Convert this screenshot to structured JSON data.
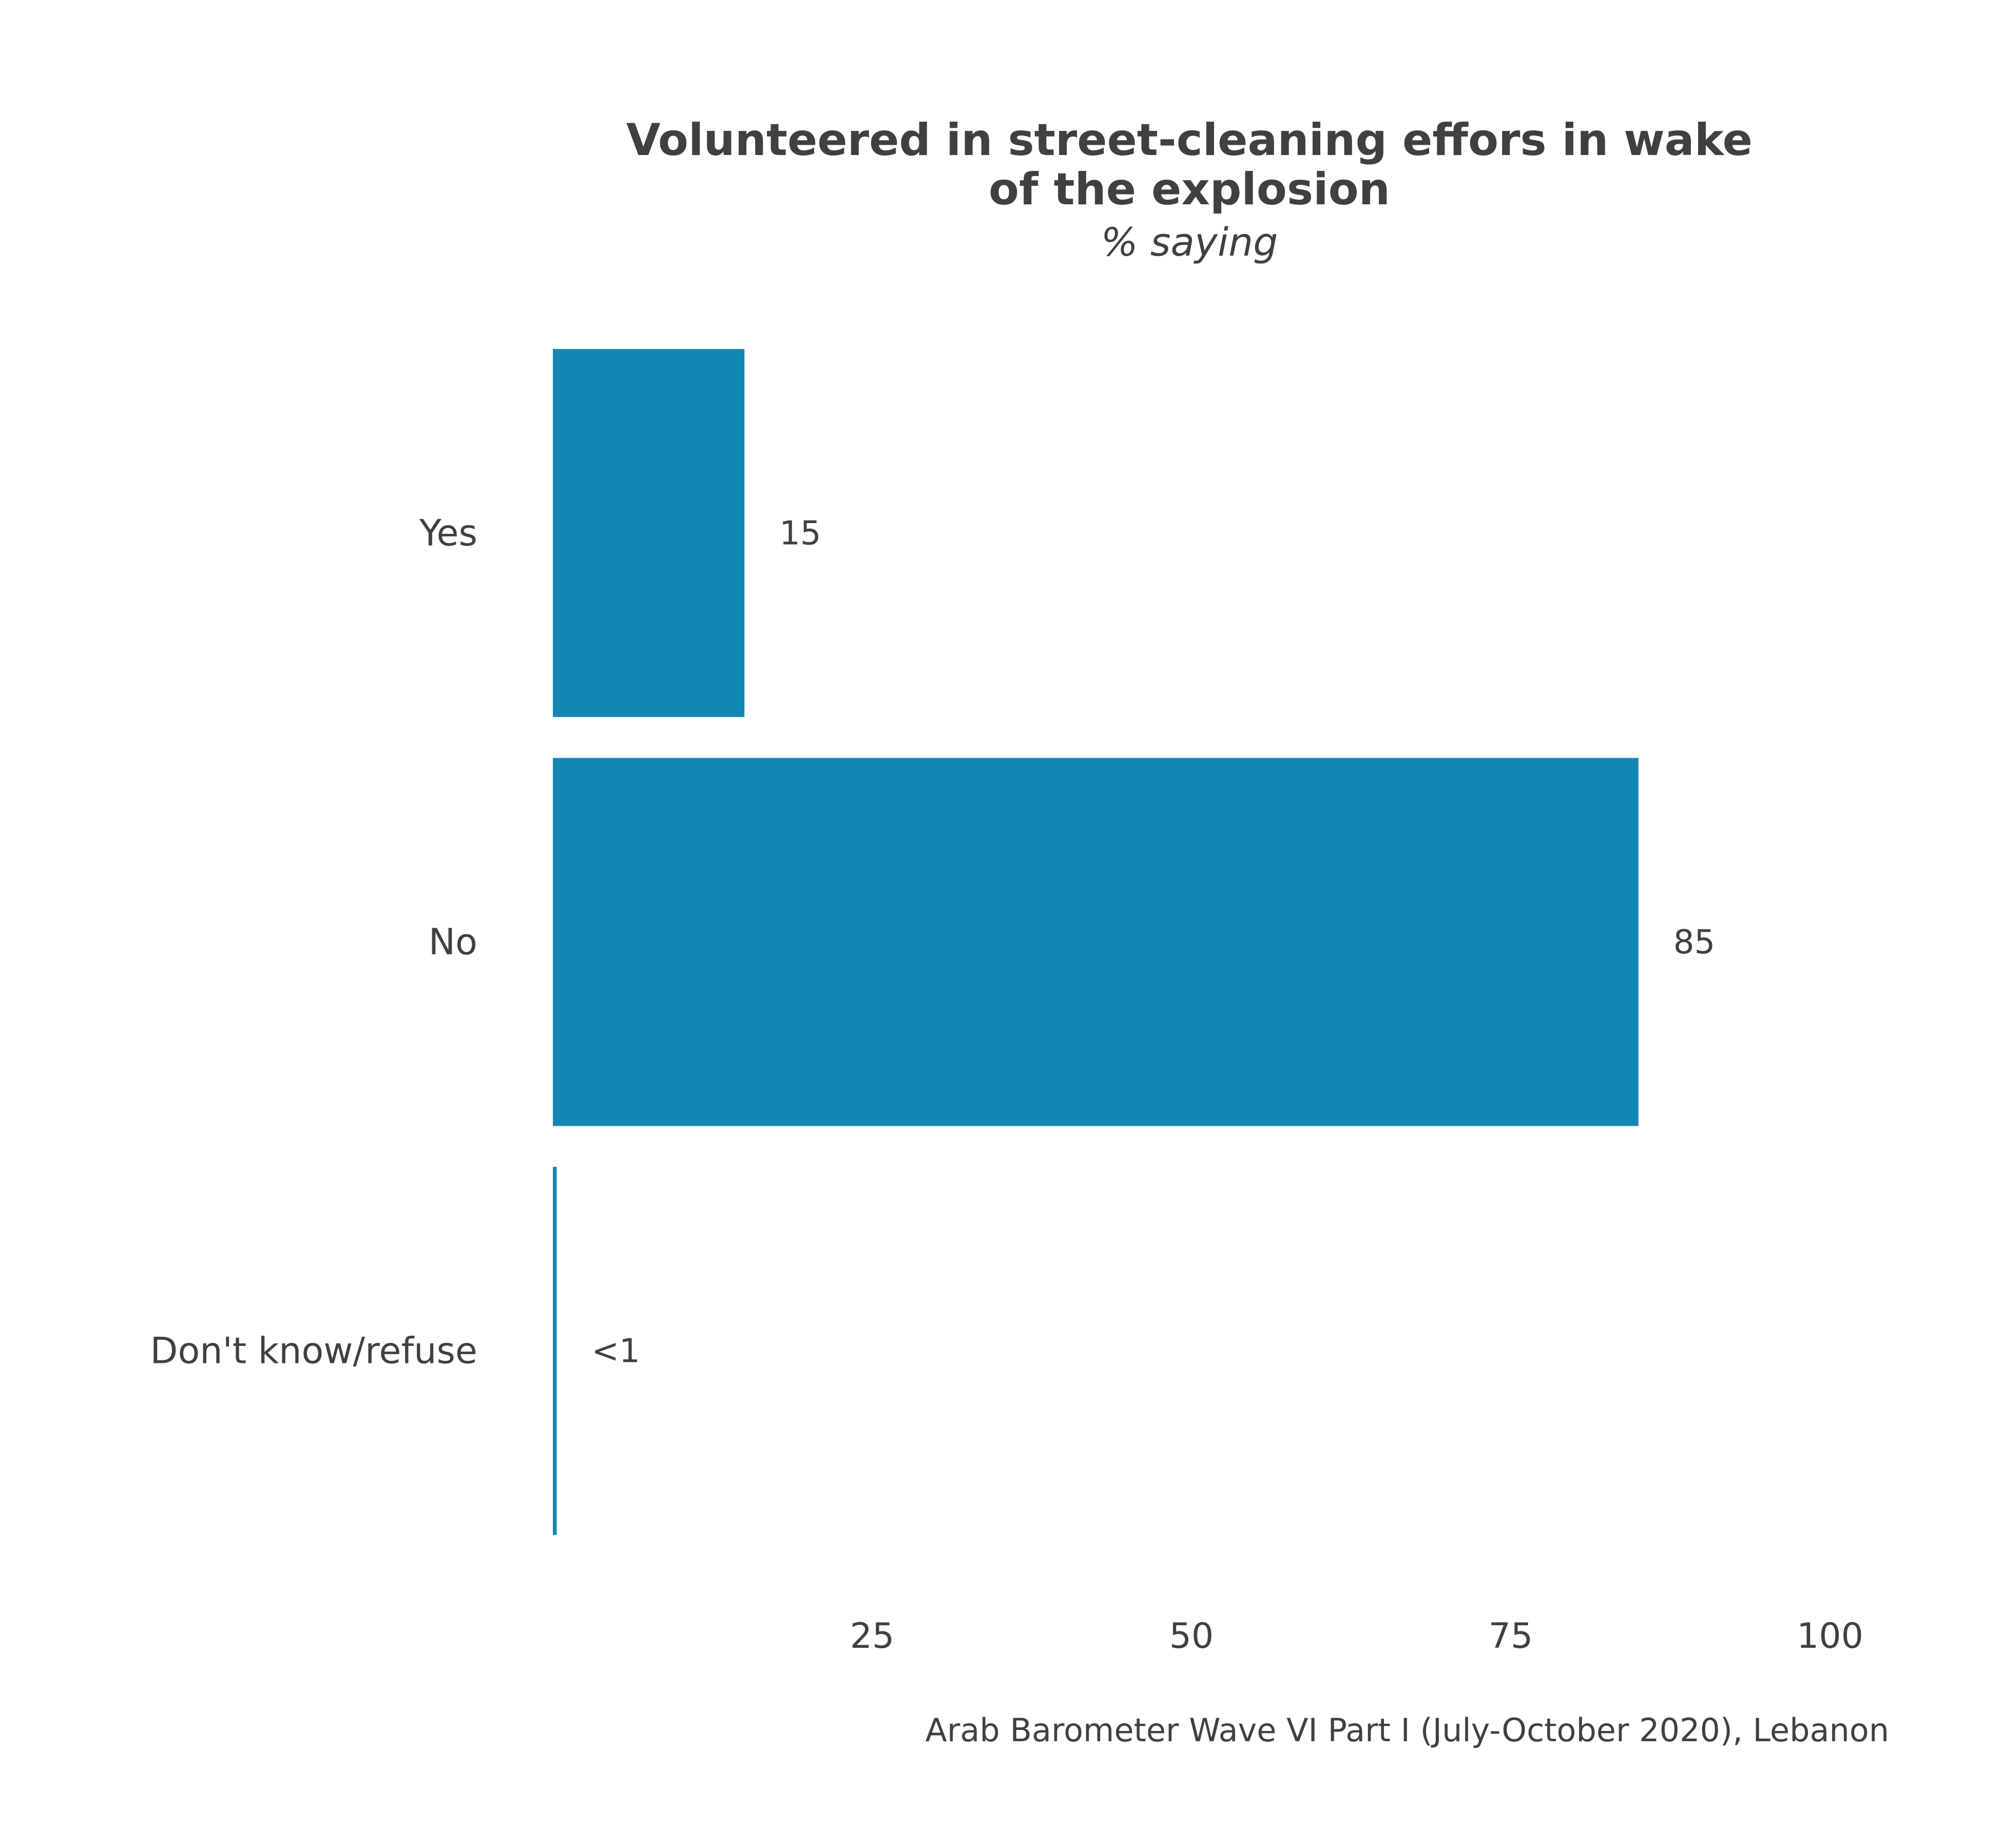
{
  "colors": {
    "bar": "#1287b1",
    "text": "#404040",
    "background": "#ffffff"
  },
  "chart_data": {
    "type": "bar",
    "orientation": "horizontal",
    "title_lines": [
      "Volunteered in street-cleaning effors in wake",
      "of the explosion"
    ],
    "subtitle": "% saying",
    "categories": [
      "Yes",
      "No",
      "Don't know/refuse"
    ],
    "values": [
      15,
      85,
      0.3
    ],
    "value_labels": [
      "15",
      "85",
      "<1"
    ],
    "xlim": [
      0,
      100
    ],
    "x_ticks": [
      25,
      50,
      75,
      100
    ],
    "x_tick_labels": [
      "25",
      "50",
      "75",
      "100"
    ],
    "grid": false,
    "legend": "none",
    "caption": "Arab Barometer Wave VI Part I (July-October 2020), Lebanon"
  }
}
